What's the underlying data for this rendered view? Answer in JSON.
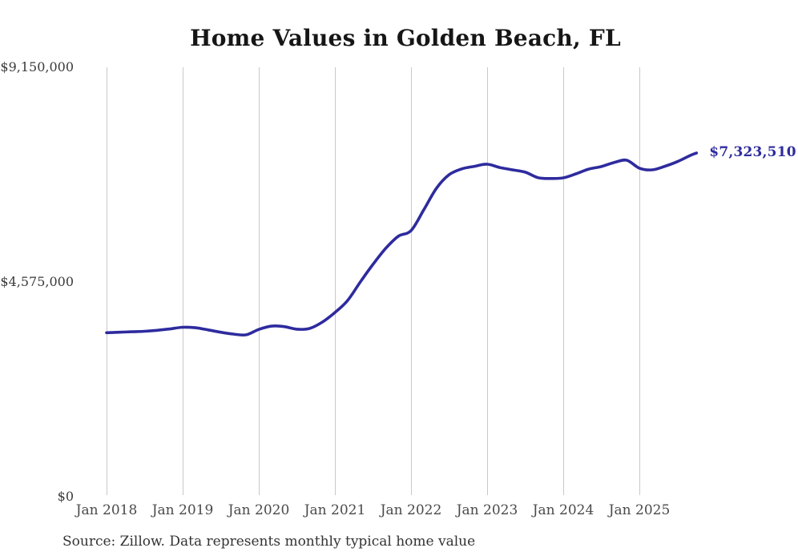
{
  "chart_data": {
    "type": "line",
    "title": "Home Values in Golden Beach, FL",
    "source_note": "Source: Zillow. Data represents monthly typical home value",
    "xlabel": "",
    "ylabel": "",
    "ylim": [
      0,
      9150000
    ],
    "x_range": [
      "2018-01",
      "2025-10"
    ],
    "grid": "vertical-only",
    "legend": "none",
    "end_label": "$7,323,510",
    "end_value": 7323510,
    "y_ticks": [
      {
        "label": "$9,150,000",
        "value": 9150000
      },
      {
        "label": "$4,575,000",
        "value": 4575000
      },
      {
        "label": "$0",
        "value": 0
      }
    ],
    "x_ticks": [
      {
        "label": "Jan 2018",
        "month": "2018-01"
      },
      {
        "label": "Jan 2019",
        "month": "2019-01"
      },
      {
        "label": "Jan 2020",
        "month": "2020-01"
      },
      {
        "label": "Jan 2021",
        "month": "2021-01"
      },
      {
        "label": "Jan 2022",
        "month": "2022-01"
      },
      {
        "label": "Jan 2023",
        "month": "2023-01"
      },
      {
        "label": "Jan 2024",
        "month": "2024-01"
      },
      {
        "label": "Jan 2025",
        "month": "2025-01"
      }
    ],
    "series": {
      "months": [
        "2018-01",
        "2018-03",
        "2018-05",
        "2018-07",
        "2018-09",
        "2018-11",
        "2019-01",
        "2019-03",
        "2019-05",
        "2019-07",
        "2019-09",
        "2019-11",
        "2020-01",
        "2020-03",
        "2020-05",
        "2020-07",
        "2020-09",
        "2020-11",
        "2021-01",
        "2021-03",
        "2021-05",
        "2021-07",
        "2021-09",
        "2021-11",
        "2022-01",
        "2022-03",
        "2022-05",
        "2022-07",
        "2022-09",
        "2022-11",
        "2023-01",
        "2023-03",
        "2023-05",
        "2023-07",
        "2023-09",
        "2023-11",
        "2024-01",
        "2024-03",
        "2024-05",
        "2024-07",
        "2024-09",
        "2024-11",
        "2025-01",
        "2025-03",
        "2025-05",
        "2025-07",
        "2025-09",
        "2025-10"
      ],
      "values": [
        3495000,
        3505000,
        3515000,
        3525000,
        3545000,
        3575000,
        3610000,
        3600000,
        3555000,
        3505000,
        3465000,
        3450000,
        3565000,
        3635000,
        3625000,
        3570000,
        3585000,
        3720000,
        3925000,
        4180000,
        4575000,
        4950000,
        5290000,
        5550000,
        5670000,
        6110000,
        6570000,
        6860000,
        6985000,
        7040000,
        7085000,
        7015000,
        6965000,
        6915000,
        6800000,
        6780000,
        6795000,
        6880000,
        6980000,
        7035000,
        7120000,
        7170000,
        7000000,
        6965000,
        7040000,
        7140000,
        7270000,
        7323510
      ]
    },
    "colors": {
      "line": "#2e2b9e",
      "grid": "#c9c9c9",
      "title_text": "#161616",
      "y_axis_text": "#3a3a3a",
      "x_axis_text": "#4a4a4a",
      "source_text": "#333333",
      "background": "#ffffff"
    }
  }
}
